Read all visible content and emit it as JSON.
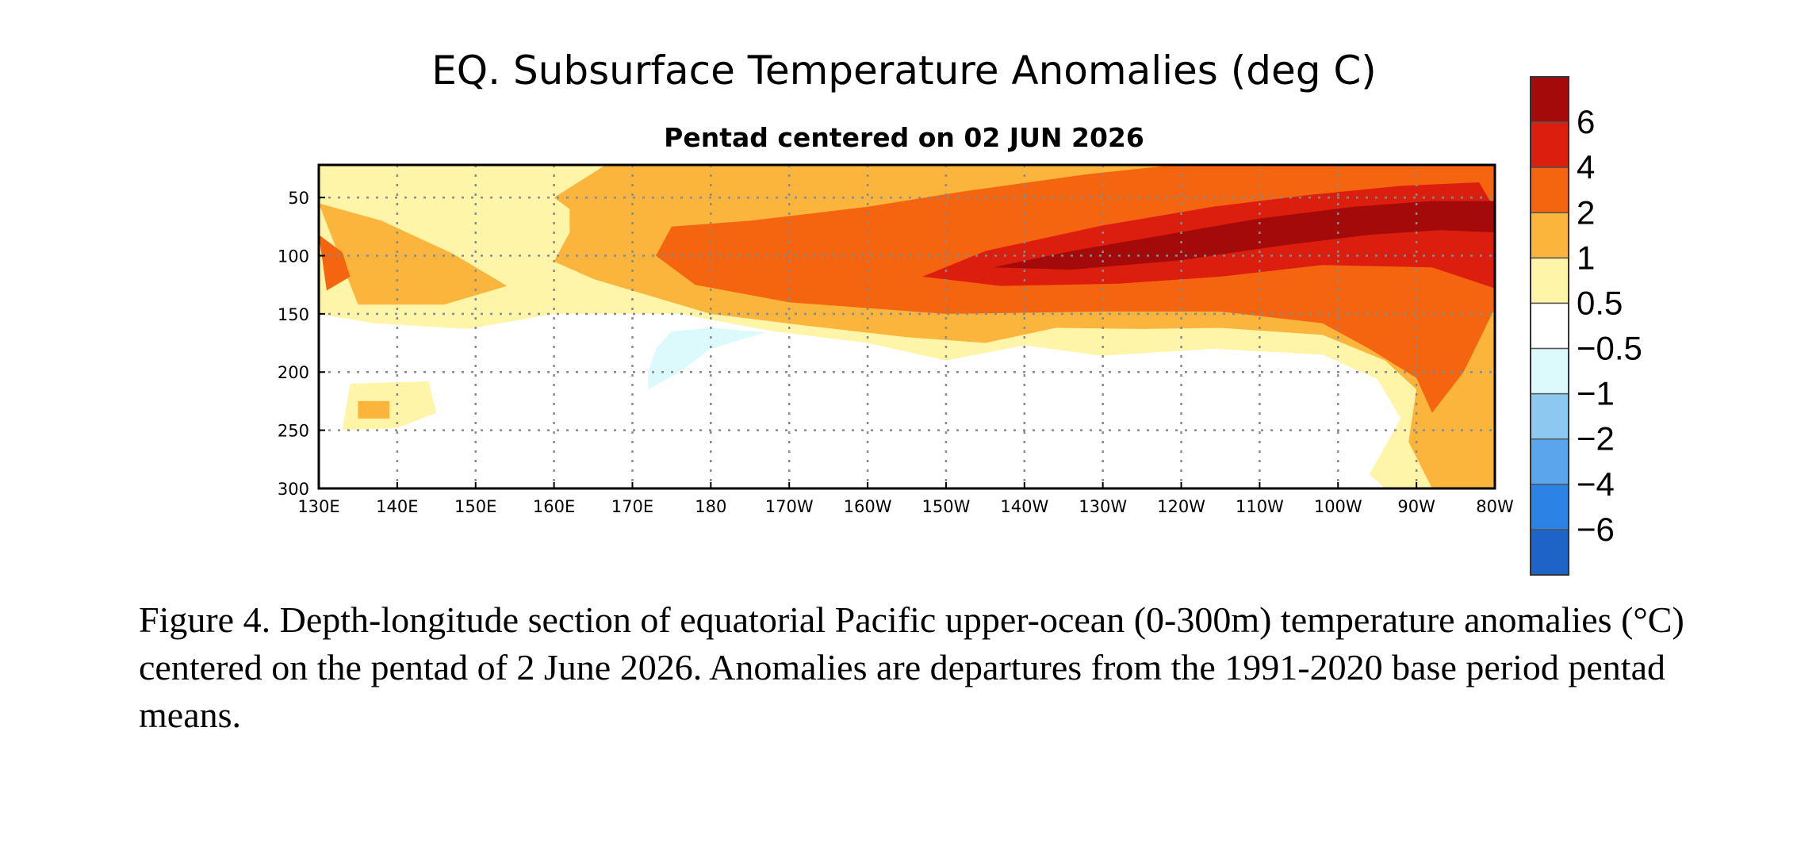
{
  "chart_data": {
    "type": "heatmap",
    "title": "EQ. Subsurface Temperature Anomalies (deg C)",
    "subtitle": "Pentad centered on 02 JUN 2026",
    "xlabel": "",
    "ylabel": "",
    "x_tick_labels": [
      "130E",
      "140E",
      "150E",
      "160E",
      "170E",
      "180",
      "170W",
      "160W",
      "150W",
      "140W",
      "130W",
      "120W",
      "110W",
      "100W",
      "90W",
      "80W"
    ],
    "x_tick_values": [
      130,
      140,
      150,
      160,
      170,
      180,
      190,
      200,
      210,
      220,
      230,
      240,
      250,
      260,
      270,
      280
    ],
    "y_tick_labels": [
      "50",
      "100",
      "150",
      "200",
      "250",
      "300"
    ],
    "y_tick_values": [
      50,
      100,
      150,
      200,
      250,
      300
    ],
    "xlim": [
      130,
      280
    ],
    "ylim": [
      300,
      0
    ],
    "y_reversed": true,
    "grid": true,
    "legend": "colorbar-right",
    "colorbar": {
      "labels": [
        "6",
        "4",
        "2",
        "1",
        "0.5",
        "−0.5",
        "−1",
        "−2",
        "−4",
        "−6"
      ],
      "level_values": [
        6,
        4,
        2,
        1,
        0.5,
        -0.5,
        -1,
        -2,
        -4,
        -6
      ],
      "colors_top_to_bottom": [
        "#a50a0a",
        "#dc1e0f",
        "#f5640f",
        "#fbb43c",
        "#fff5a8",
        "#ffffff",
        "#dcfafc",
        "#8cc8f0",
        "#5aa5eb",
        "#2d82e6",
        "#1e64c8"
      ]
    },
    "anomaly_regions": [
      {
        "level": 0.5,
        "color": "#fff5a8",
        "polygon": [
          [
            130,
            20
          ],
          [
            146,
            20
          ],
          [
            161,
            16
          ],
          [
            182,
            16
          ],
          [
            200,
            16
          ],
          [
            280,
            16
          ],
          [
            280,
            300
          ],
          [
            266,
            300
          ],
          [
            264,
            288
          ],
          [
            268,
            240
          ],
          [
            265,
            206
          ],
          [
            258,
            185
          ],
          [
            244,
            180
          ],
          [
            230,
            186
          ],
          [
            220,
            177
          ],
          [
            210,
            190
          ],
          [
            200,
            175
          ],
          [
            188,
            165
          ],
          [
            176,
            150
          ],
          [
            160,
            150
          ],
          [
            149,
            163
          ],
          [
            137,
            158
          ],
          [
            130,
            150
          ]
        ]
      },
      {
        "level": 0.5,
        "color": "#fff5a8",
        "polygon": [
          [
            134,
            210
          ],
          [
            144,
            208
          ],
          [
            145,
            235
          ],
          [
            140,
            248
          ],
          [
            133,
            250
          ]
        ]
      },
      {
        "level": 1,
        "color": "#fbb43c",
        "polygon": [
          [
            160,
            50
          ],
          [
            168,
            16
          ],
          [
            280,
            16
          ],
          [
            280,
            300
          ],
          [
            272,
            300
          ],
          [
            269,
            260
          ],
          [
            270,
            215
          ],
          [
            266,
            190
          ],
          [
            258,
            168
          ],
          [
            245,
            162
          ],
          [
            235,
            163
          ],
          [
            224,
            162
          ],
          [
            215,
            175
          ],
          [
            205,
            170
          ],
          [
            192,
            160
          ],
          [
            180,
            150
          ],
          [
            165,
            120
          ],
          [
            160,
            105
          ],
          [
            162,
            80
          ],
          [
            162,
            60
          ]
        ]
      },
      {
        "level": 1,
        "color": "#fbb43c",
        "polygon": [
          [
            130,
            55
          ],
          [
            138,
            70
          ],
          [
            147,
            98
          ],
          [
            154,
            126
          ],
          [
            146,
            142
          ],
          [
            135,
            142
          ]
        ]
      },
      {
        "level": 1,
        "color": "#fbb43c",
        "polygon": [
          [
            135,
            225
          ],
          [
            139,
            225
          ],
          [
            139,
            240
          ],
          [
            135,
            240
          ]
        ]
      },
      {
        "level": 2,
        "color": "#f5640f",
        "polygon": [
          [
            175,
            75
          ],
          [
            185,
            70
          ],
          [
            200,
            58
          ],
          [
            212,
            45
          ],
          [
            228,
            30
          ],
          [
            242,
            20
          ],
          [
            252,
            15
          ],
          [
            280,
            15
          ],
          [
            280,
            145
          ],
          [
            276,
            200
          ],
          [
            272,
            235
          ],
          [
            270,
            205
          ],
          [
            264,
            180
          ],
          [
            258,
            158
          ],
          [
            245,
            148
          ],
          [
            230,
            148
          ],
          [
            210,
            150
          ],
          [
            190,
            140
          ],
          [
            178,
            125
          ],
          [
            173,
            100
          ]
        ]
      },
      {
        "level": 2,
        "color": "#f5640f",
        "polygon": [
          [
            130,
            82
          ],
          [
            133,
            97
          ],
          [
            134,
            118
          ],
          [
            131,
            130
          ]
        ]
      },
      {
        "level": 4,
        "color": "#dc1e0f",
        "polygon": [
          [
            207,
            118
          ],
          [
            215,
            96
          ],
          [
            230,
            74
          ],
          [
            244,
            58
          ],
          [
            256,
            48
          ],
          [
            268,
            40
          ],
          [
            278,
            37
          ],
          [
            280,
            60
          ],
          [
            280,
            128
          ],
          [
            272,
            110
          ],
          [
            258,
            108
          ],
          [
            245,
            118
          ],
          [
            232,
            124
          ],
          [
            217,
            126
          ]
        ]
      },
      {
        "level": 6,
        "color": "#a50a0a",
        "polygon": [
          [
            216,
            110
          ],
          [
            226,
            96
          ],
          [
            238,
            82
          ],
          [
            250,
            68
          ],
          [
            262,
            58
          ],
          [
            272,
            53
          ],
          [
            280,
            53
          ],
          [
            280,
            80
          ],
          [
            273,
            78
          ],
          [
            264,
            82
          ],
          [
            252,
            92
          ],
          [
            240,
            104
          ],
          [
            226,
            112
          ]
        ]
      }
    ],
    "cool_regions": [
      {
        "level": -0.5,
        "color": "#dcfafc",
        "polygon": [
          [
            172,
            200
          ],
          [
            173,
            180
          ],
          [
            175,
            165
          ],
          [
            180,
            162
          ],
          [
            187,
            166
          ],
          [
            180,
            180
          ],
          [
            176,
            200
          ],
          [
            172,
            215
          ]
        ]
      }
    ]
  },
  "caption": {
    "text": "Figure 4. Depth-longitude section of equatorial Pacific upper-ocean (0-300m) temperature anomalies (°C) centered on the pentad of 2 June 2026. Anomalies are departures from the 1991-2020 base period pentad means."
  }
}
